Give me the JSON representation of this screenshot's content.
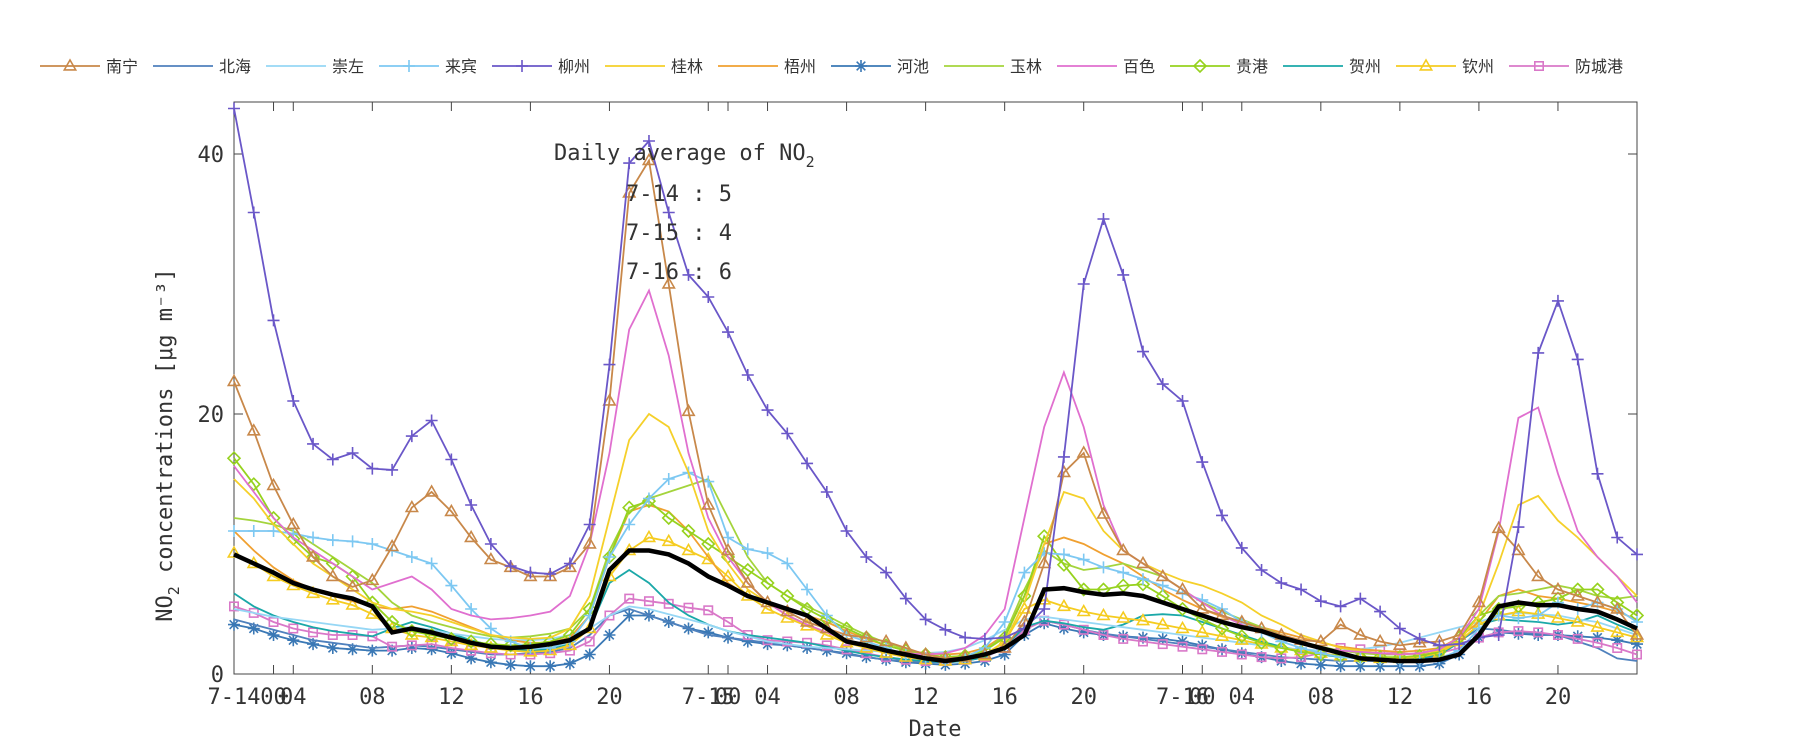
{
  "chart_data": {
    "type": "line",
    "xlabel": "Date",
    "ylabel": "concentrations [μg m⁻³]",
    "ylabel_prefix": "NO",
    "ylabel_sub": "2",
    "ylim": [
      0,
      44
    ],
    "yticks": [
      0,
      20,
      40
    ],
    "xlim": [
      0,
      71
    ],
    "xticks": [
      {
        "x": 0,
        "label": "7-14"
      },
      {
        "x": 2,
        "label": "00"
      },
      {
        "x": 3,
        "label": "04"
      },
      {
        "x": 7,
        "label": "08"
      },
      {
        "x": 11,
        "label": "12"
      },
      {
        "x": 15,
        "label": "16"
      },
      {
        "x": 19,
        "label": "20"
      },
      {
        "x": 24,
        "label": "7-15"
      },
      {
        "x": 25,
        "label": "00"
      },
      {
        "x": 27,
        "label": "04"
      },
      {
        "x": 31,
        "label": "08"
      },
      {
        "x": 35,
        "label": "12"
      },
      {
        "x": 39,
        "label": "16"
      },
      {
        "x": 43,
        "label": "20"
      },
      {
        "x": 48,
        "label": "7-16"
      },
      {
        "x": 49,
        "label": "00"
      },
      {
        "x": 51,
        "label": "04"
      },
      {
        "x": 55,
        "label": "08"
      },
      {
        "x": 59,
        "label": "12"
      },
      {
        "x": 63,
        "label": "16"
      },
      {
        "x": 67,
        "label": "20"
      }
    ],
    "grid": false,
    "legend_position": "top",
    "annotation": {
      "title_prefix": "Daily average of NO",
      "title_sub": "2",
      "rows": [
        "7-14 : 5",
        "7-15 : 4",
        "7-16 : 6"
      ]
    },
    "average_series": {
      "color": "#000000",
      "values": [
        9.2,
        8.5,
        7.8,
        7,
        6.5,
        6.1,
        5.8,
        5.2,
        3.2,
        3.5,
        3.2,
        2.8,
        2.4,
        2.1,
        2,
        2.1,
        2.3,
        2.6,
        3.5,
        8,
        9.5,
        9.5,
        9.2,
        8.5,
        7.5,
        6.8,
        6,
        5.5,
        5,
        4.5,
        3.5,
        2.5,
        2.2,
        1.8,
        1.5,
        1.2,
        1,
        1.2,
        1.5,
        2,
        3,
        6.5,
        6.6,
        6.3,
        6.1,
        6.2,
        6,
        5.5,
        5,
        4.5,
        4,
        3.6,
        3.3,
        2.8,
        2.4,
        2,
        1.6,
        1.2,
        1.1,
        1,
        1,
        1.1,
        1.5,
        3,
        5.2,
        5.5,
        5.3,
        5.3,
        5,
        4.8,
        4.2,
        3.5
      ]
    },
    "series": [
      {
        "name": "南宁",
        "color": "#c8884a",
        "marker": "triangle",
        "values": [
          22.5,
          18.7,
          14.5,
          11.5,
          9,
          7.5,
          6.7,
          7.2,
          9.8,
          12.8,
          14,
          12.5,
          10.5,
          8.8,
          8.2,
          7.5,
          7.5,
          8.2,
          10,
          21,
          37,
          39.5,
          30,
          20.2,
          13,
          9.5,
          7,
          5.5,
          4.8,
          4,
          3.5,
          3,
          2.8,
          2.5,
          2,
          1.5,
          1.2,
          1.3,
          1.5,
          2,
          4,
          8.5,
          15.5,
          17,
          12.3,
          9.5,
          8.5,
          7.5,
          6.5,
          5,
          4.5,
          4,
          3.5,
          3,
          2.6,
          2.5,
          3.8,
          3,
          2.5,
          2.2,
          2.4,
          2.5,
          3,
          5.5,
          11.2,
          9.5,
          7.5,
          6.5,
          6,
          5.5,
          5,
          3
        ]
      },
      {
        "name": "北海",
        "color": "#4f81bd",
        "marker": "none",
        "values": [
          4.2,
          3.8,
          3.4,
          3,
          2.6,
          2.4,
          2.2,
          2,
          2.1,
          2.2,
          2.1,
          1.9,
          1.7,
          1.5,
          1.5,
          1.6,
          1.7,
          2,
          3,
          4.5,
          5,
          4.5,
          4,
          3.5,
          3,
          2.8,
          2.6,
          2.4,
          2.2,
          2,
          1.8,
          1.5,
          1.3,
          1.1,
          1,
          0.9,
          0.9,
          1,
          1.3,
          2,
          3.5,
          4.1,
          3.8,
          3.4,
          3.1,
          2.9,
          2.7,
          2.5,
          2.3,
          2.1,
          1.9,
          1.7,
          1.5,
          1.3,
          1.2,
          1.1,
          1,
          1,
          1,
          1,
          1.1,
          1.4,
          2.5,
          3.5,
          3.4,
          3.2,
          3.1,
          3,
          2.5,
          2,
          1.2,
          1
        ]
      },
      {
        "name": "崇左",
        "color": "#96d7f5",
        "marker": "none",
        "values": [
          5,
          4.7,
          4.4,
          4.2,
          4,
          3.8,
          3.6,
          3.4,
          3.5,
          3.6,
          3.4,
          3.1,
          2.9,
          2.7,
          2.6,
          2.6,
          2.7,
          3,
          3.5,
          4.5,
          5.2,
          5,
          4.6,
          4.2,
          3.8,
          3.3,
          2.9,
          2.5,
          2.3,
          2.1,
          2,
          1.9,
          1.8,
          1.7,
          1.6,
          1.6,
          1.7,
          2,
          2.6,
          3.4,
          4.2,
          4.4,
          4.2,
          4,
          3.8,
          3.6,
          3.4,
          3.2,
          3,
          2.8,
          2.6,
          2.4,
          2.2,
          2,
          1.9,
          1.8,
          1.8,
          1.9,
          2.1,
          2.4,
          2.8,
          3.2,
          3.6,
          4,
          4.5,
          4.7,
          4.6,
          4.5,
          4.2,
          4,
          3.5,
          3
        ]
      },
      {
        "name": "来宾",
        "color": "#7dc8f2",
        "marker": "plus",
        "values": [
          11,
          11,
          11,
          10.8,
          10.5,
          10.3,
          10.2,
          10,
          9.5,
          9,
          8.5,
          6.8,
          5,
          3.5,
          2.5,
          2,
          2,
          2.5,
          4.5,
          9,
          11.5,
          13.5,
          15,
          15.5,
          14.8,
          10.5,
          9.6,
          9.3,
          8.5,
          6.5,
          4.5,
          3,
          2.5,
          2,
          1.5,
          1.2,
          1.1,
          1.3,
          2,
          4,
          7.8,
          9.3,
          9.2,
          8.8,
          8.2,
          7.8,
          7.3,
          6.8,
          6.2,
          5.7,
          5,
          4,
          3.2,
          2.5,
          2,
          1.6,
          1.3,
          1.2,
          1.1,
          1,
          1,
          1.2,
          1.8,
          3.5,
          4.5,
          4.3,
          4.5,
          5.5,
          5,
          5.5,
          5,
          4
        ]
      },
      {
        "name": "柳州",
        "color": "#6a57c8",
        "marker": "plus",
        "values": [
          43.5,
          35.5,
          27.2,
          21,
          17.7,
          16.5,
          17,
          15.8,
          15.7,
          18.3,
          19.5,
          16.5,
          13,
          10,
          8.3,
          7.8,
          7.7,
          8.5,
          11.5,
          23.8,
          39.3,
          41,
          35.5,
          30.7,
          29,
          26.3,
          23,
          20.3,
          18.5,
          16.2,
          14,
          11,
          9,
          7.8,
          5.8,
          4.2,
          3.4,
          2.8,
          2.7,
          2.8,
          3.5,
          5,
          16.7,
          30,
          35,
          30.7,
          24.8,
          22.3,
          21,
          16.3,
          12.2,
          9.7,
          8,
          7,
          6.5,
          5.6,
          5.2,
          5.8,
          4.8,
          3.5,
          2.7,
          2.2,
          2.3,
          2.8,
          3,
          11.3,
          24.7,
          28.7,
          24.2,
          15.4,
          10.5,
          9.2
        ]
      },
      {
        "name": "桂林",
        "color": "#f5d02a",
        "marker": "none",
        "values": [
          15,
          13.5,
          11.5,
          10,
          8.5,
          7.5,
          6.5,
          5.5,
          5,
          4.8,
          4.5,
          4,
          3.5,
          3,
          2.8,
          2.7,
          2.8,
          3.5,
          6,
          12,
          18,
          20,
          19,
          15.5,
          11,
          8.5,
          6.5,
          5.5,
          4.5,
          3.8,
          3,
          2.5,
          2,
          1.8,
          1.5,
          1.3,
          1.2,
          1.3,
          1.5,
          2.5,
          5.5,
          10,
          14,
          13.5,
          11,
          9.5,
          8.5,
          7.8,
          7.2,
          6.8,
          6.2,
          5.5,
          4.5,
          3.8,
          3,
          2.5,
          2,
          1.8,
          1.6,
          1.5,
          1.6,
          1.8,
          2.5,
          4.5,
          8.5,
          13,
          13.7,
          11.8,
          10.5,
          9,
          7.5,
          6
        ]
      },
      {
        "name": "梧州",
        "color": "#f0a030",
        "marker": "none",
        "values": [
          11,
          9.5,
          8.2,
          7.2,
          6.5,
          6,
          5.6,
          5.2,
          5,
          5.2,
          4.8,
          4.2,
          3.6,
          3,
          2.6,
          2.4,
          2.4,
          2.8,
          4.5,
          9,
          12.5,
          13,
          12.5,
          11,
          9,
          7,
          6,
          5.5,
          5,
          4.5,
          4,
          3.3,
          2.7,
          2.2,
          1.8,
          1.6,
          1.5,
          1.6,
          2,
          3,
          6,
          10,
          10.5,
          10,
          9.2,
          8.5,
          7.5,
          6.5,
          5.7,
          5,
          4.4,
          4,
          3.6,
          3.2,
          2.8,
          2.4,
          2.1,
          1.9,
          1.8,
          1.7,
          1.8,
          2,
          2.8,
          4,
          6,
          6.5,
          6,
          5.8,
          5.5,
          5.2,
          4.8,
          4.2
        ]
      },
      {
        "name": "河池",
        "color": "#3a78b5",
        "marker": "star",
        "values": [
          3.8,
          3.5,
          3,
          2.6,
          2.3,
          2,
          1.9,
          1.8,
          1.8,
          2,
          1.9,
          1.6,
          1.2,
          0.9,
          0.7,
          0.6,
          0.6,
          0.8,
          1.5,
          3,
          4.5,
          4.5,
          4,
          3.5,
          3.2,
          2.8,
          2.5,
          2.3,
          2.2,
          2,
          1.8,
          1.6,
          1.3,
          1.1,
          0.9,
          0.8,
          0.7,
          0.8,
          1,
          1.5,
          3,
          3.9,
          3.5,
          3.2,
          3,
          2.9,
          2.8,
          2.7,
          2.5,
          2.2,
          1.9,
          1.6,
          1.3,
          1,
          0.8,
          0.7,
          0.6,
          0.6,
          0.6,
          0.6,
          0.6,
          0.8,
          1.5,
          2.8,
          3.2,
          3.1,
          3,
          3,
          2.9,
          2.8,
          2.6,
          2.3
        ]
      },
      {
        "name": "玉林",
        "color": "#a4d43c",
        "marker": "none",
        "values": [
          12,
          11.8,
          11.5,
          11,
          10,
          9,
          8,
          7,
          5.5,
          4.5,
          4,
          3.6,
          3.2,
          2.9,
          2.8,
          2.9,
          3.1,
          3.5,
          5,
          9.5,
          12.5,
          13.5,
          14,
          14.5,
          15,
          12,
          9,
          7,
          6,
          5.2,
          4.5,
          3.7,
          3,
          2.4,
          1.9,
          1.5,
          1.3,
          1.4,
          1.8,
          3,
          6.5,
          9.5,
          8.5,
          8,
          8.2,
          8.5,
          8,
          7.5,
          6.5,
          5.5,
          4.8,
          4.2,
          3.6,
          3,
          2.5,
          2.1,
          1.8,
          1.6,
          1.5,
          1.5,
          1.6,
          1.9,
          2.8,
          4.5,
          6,
          6.2,
          6.5,
          6.8,
          6.5,
          6,
          5.8,
          6
        ]
      },
      {
        "name": "百色",
        "color": "#e06fcf",
        "marker": "none",
        "values": [
          16,
          14,
          12,
          10.5,
          9.5,
          8.5,
          7.5,
          6.5,
          7,
          7.5,
          6.5,
          5,
          4.5,
          4.2,
          4.3,
          4.5,
          4.8,
          6,
          10,
          17,
          26.5,
          29.5,
          24.5,
          17,
          12,
          9,
          7,
          5.5,
          4.5,
          3.8,
          3.2,
          2.6,
          2.1,
          1.8,
          1.6,
          1.5,
          1.6,
          2,
          3,
          5,
          12,
          19,
          23.2,
          19,
          13,
          9.5,
          8.5,
          7.5,
          6.5,
          5.5,
          4.5,
          3.8,
          3.2,
          2.8,
          2.4,
          2,
          1.8,
          1.7,
          1.6,
          1.5,
          1.6,
          1.9,
          2.8,
          5,
          11,
          19.7,
          20.5,
          15.4,
          11,
          9,
          7.5,
          5.5
        ]
      },
      {
        "name": "贵港",
        "color": "#96d21e",
        "marker": "diamond",
        "values": [
          16.6,
          14.6,
          12,
          10.4,
          9,
          8.5,
          7.5,
          5.5,
          4,
          3.3,
          3,
          2.7,
          2.5,
          2.3,
          2.2,
          2.3,
          2.5,
          3,
          5,
          9,
          12.8,
          13.3,
          12,
          11,
          10,
          9,
          8,
          7,
          6,
          5,
          4.2,
          3.5,
          2.8,
          2.2,
          1.8,
          1.5,
          1.3,
          1.4,
          1.8,
          2.8,
          6,
          10.6,
          8.4,
          6.5,
          6.5,
          6.8,
          6.9,
          6,
          5,
          4.2,
          3.5,
          2.9,
          2.4,
          2,
          1.7,
          1.5,
          1.4,
          1.3,
          1.3,
          1.3,
          1.4,
          1.7,
          2.8,
          4.5,
          5,
          5.2,
          5.5,
          5.8,
          6.5,
          6.5,
          5.5,
          4.5
        ]
      },
      {
        "name": "贺州",
        "color": "#1aa8a8",
        "marker": "none",
        "values": [
          6.2,
          5.2,
          4.5,
          4,
          3.6,
          3.3,
          3.1,
          2.9,
          3.5,
          4,
          3.6,
          3.1,
          2.6,
          2.2,
          1.9,
          1.8,
          1.9,
          2.3,
          3.5,
          7,
          8,
          7,
          5.5,
          4.5,
          3.8,
          3.3,
          3,
          2.8,
          2.6,
          2.4,
          2.1,
          1.8,
          1.5,
          1.3,
          1.1,
          1,
          0.9,
          1,
          1.3,
          2.1,
          3.6,
          4.1,
          3.9,
          3.6,
          3.4,
          3.8,
          4.5,
          4.6,
          4.5,
          4,
          3.5,
          3,
          2.5,
          2.1,
          1.8,
          1.5,
          1.3,
          1.2,
          1.1,
          1.1,
          1.2,
          1.5,
          2.4,
          3.8,
          4.2,
          4.1,
          4,
          3.8,
          4,
          4.5,
          3.8,
          3.2
        ]
      },
      {
        "name": "钦州",
        "color": "#f5cc20",
        "marker": "triangle",
        "values": [
          9.3,
          8.5,
          7.5,
          6.8,
          6.2,
          5.7,
          5.3,
          4.6,
          3.5,
          3,
          2.8,
          2.5,
          2.2,
          2,
          1.8,
          1.7,
          1.8,
          2.2,
          3.5,
          7.5,
          9.5,
          10.5,
          10.2,
          9.5,
          8.8,
          7.5,
          6,
          5,
          4.3,
          3.7,
          3,
          2.4,
          2,
          1.6,
          1.3,
          1.1,
          1,
          1.1,
          1.4,
          2.5,
          5,
          5.7,
          5.2,
          4.8,
          4.5,
          4.3,
          4.1,
          3.8,
          3.5,
          3.2,
          2.9,
          2.6,
          2.3,
          2,
          1.8,
          1.6,
          1.4,
          1.3,
          1.2,
          1.2,
          1.3,
          1.6,
          2.5,
          3.8,
          4.5,
          4.8,
          4.6,
          4.3,
          4,
          3.6,
          3.2,
          2.8
        ]
      },
      {
        "name": "防城港",
        "color": "#d978c8",
        "marker": "square",
        "values": [
          5.2,
          4.7,
          4,
          3.5,
          3.2,
          3,
          3,
          2.9,
          2.1,
          2.2,
          2.3,
          2,
          1.8,
          1.6,
          1.5,
          1.5,
          1.6,
          1.8,
          2.5,
          4.5,
          5.8,
          5.6,
          5.4,
          5.1,
          4.9,
          4,
          3,
          2.6,
          2.5,
          2.4,
          2.2,
          1.9,
          1.6,
          1.3,
          1.1,
          1,
          1,
          1.1,
          1.3,
          2,
          3.4,
          4.1,
          3.8,
          3.4,
          3,
          2.7,
          2.5,
          2.3,
          2.1,
          1.9,
          1.7,
          1.5,
          1.3,
          1.2,
          1.3,
          1.6,
          2,
          1.9,
          1.8,
          1.6,
          1.5,
          1.6,
          2,
          2.8,
          3.2,
          3.3,
          3.2,
          3,
          2.7,
          2.4,
          2,
          1.5
        ]
      }
    ]
  }
}
